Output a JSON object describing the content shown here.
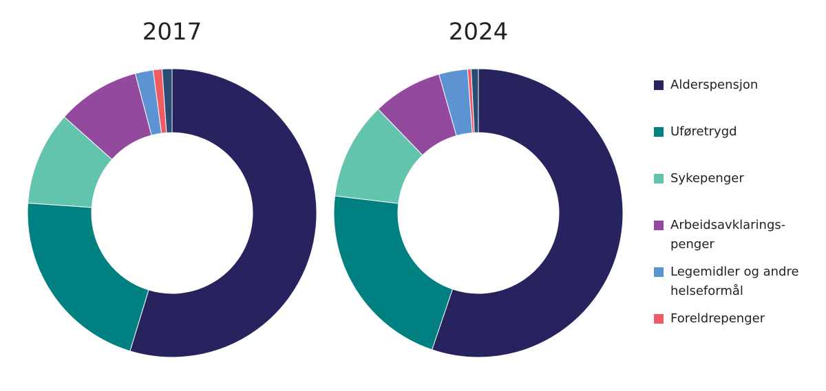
{
  "chart_data": [
    {
      "type": "pie",
      "title": "2017",
      "categories": [
        "Alderspensjon",
        "Uføretrygd",
        "Sykepenger",
        "Arbeidsavklarings-penger",
        "Legemidler og andre helseformål",
        "Foreldrepenger",
        null
      ],
      "values": [
        54.7,
        21.4,
        10.5,
        9.3,
        2.0,
        1.0,
        1.1
      ],
      "colors": [
        "#26235e",
        "#008080",
        "#62c4ad",
        "#934a9e",
        "#5b93d3",
        "#ee5b63",
        "#2a4b73"
      ]
    },
    {
      "type": "pie",
      "title": "2024",
      "values": [
        55.2,
        21.7,
        10.9,
        7.8,
        3.2,
        0.4,
        0.8
      ],
      "colors": [
        "#26235e",
        "#008080",
        "#62c4ad",
        "#934a9e",
        "#5b93d3",
        "#ee5b63",
        "#2a4b73"
      ]
    }
  ]
}
